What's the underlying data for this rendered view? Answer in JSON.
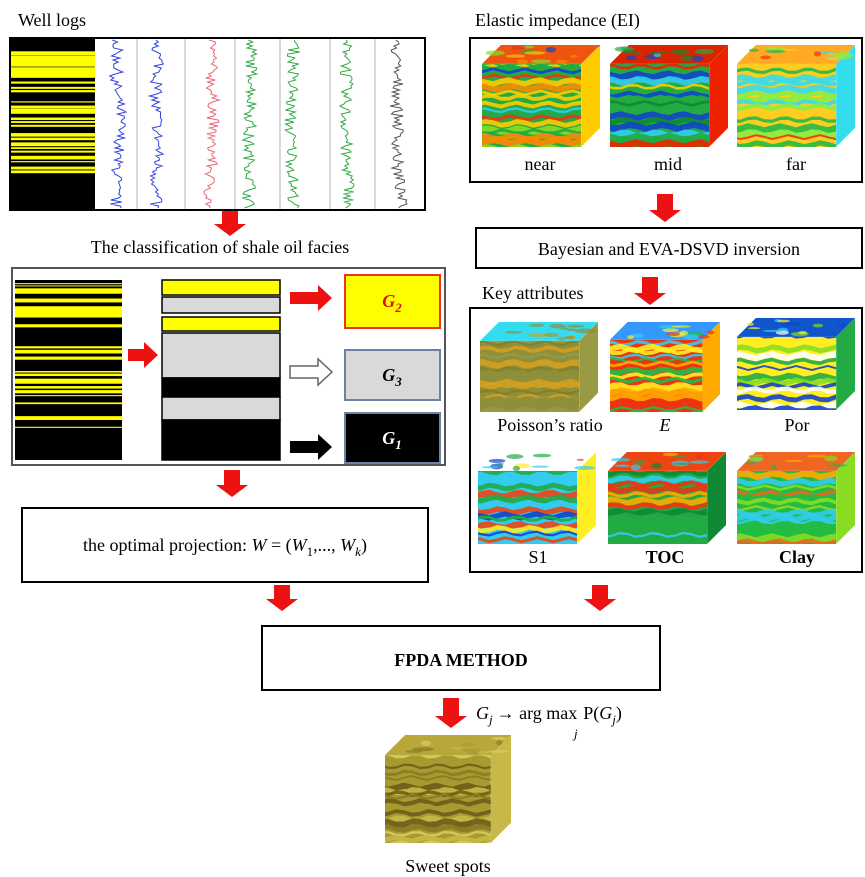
{
  "well_logs": {
    "title": "Well logs"
  },
  "classification": {
    "title": "The classification of shale oil facies",
    "groups": [
      {
        "letter": "G",
        "sub": "2"
      },
      {
        "letter": "G",
        "sub": "3"
      },
      {
        "letter": "G",
        "sub": "1"
      }
    ]
  },
  "projection": {
    "parts": [
      "the optimal projection: ",
      "W",
      " = (",
      "W",
      "1",
      ",..., ",
      "W",
      "k",
      ")"
    ]
  },
  "elastic_impedance": {
    "title": "Elastic impedance (EI)",
    "cubes": [
      "near",
      "mid",
      "far"
    ]
  },
  "inversion": {
    "label": "Bayesian and EVA-DSVD inversion"
  },
  "key_attributes": {
    "title": "Key attributes",
    "cubes": [
      "Poisson’s ratio",
      "E",
      "Por",
      "S1",
      "TOC",
      "Clay"
    ]
  },
  "method": {
    "label": "FPDA METHOD"
  },
  "decision": {
    "parts": [
      "G",
      "j",
      "→ arg max",
      "j",
      "P(",
      "G",
      "j",
      ")"
    ]
  },
  "result": {
    "label": "Sweet spots"
  }
}
